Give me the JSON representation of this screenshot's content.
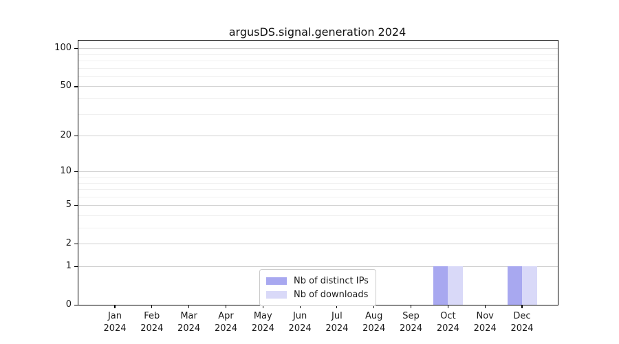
{
  "title": "argusDS.signal.generation 2024",
  "chart_data": {
    "type": "bar",
    "title": "argusDS.signal.generation 2024",
    "categories": [
      "Jan 2024",
      "Feb 2024",
      "Mar 2024",
      "Apr 2024",
      "May 2024",
      "Jun 2024",
      "Jul 2024",
      "Aug 2024",
      "Sep 2024",
      "Oct 2024",
      "Nov 2024",
      "Dec 2024"
    ],
    "series": [
      {
        "name": "Nb of distinct IPs",
        "color": "#a8a8f0",
        "values": [
          0,
          0,
          0,
          0,
          0,
          0,
          0,
          0,
          0,
          1,
          0,
          1
        ]
      },
      {
        "name": "Nb of downloads",
        "color": "#d9d9f8",
        "values": [
          0,
          0,
          0,
          0,
          0,
          0,
          0,
          0,
          0,
          1,
          0,
          1
        ]
      }
    ],
    "xlabel": "",
    "ylabel": "",
    "yscale": "symlog (position = log10(1+value))",
    "yticks_major": [
      0,
      1,
      2,
      5,
      10,
      20,
      50,
      100
    ],
    "yticks_minor": [
      3,
      4,
      6,
      7,
      8,
      9,
      30,
      40,
      60,
      70,
      80,
      90
    ],
    "ylim": [
      0,
      113
    ],
    "grid": "horizontal major + minor",
    "legend_position": "lower center"
  },
  "colors": {
    "bar_distinct_ips": "#a8a8f0",
    "bar_downloads": "#d9d9f8",
    "grid_major": "#d0d0d0",
    "grid_minor": "#f0f0f0",
    "spine": "#000000",
    "text": "#1a1a1a",
    "legend_border": "#c9c9c9"
  }
}
